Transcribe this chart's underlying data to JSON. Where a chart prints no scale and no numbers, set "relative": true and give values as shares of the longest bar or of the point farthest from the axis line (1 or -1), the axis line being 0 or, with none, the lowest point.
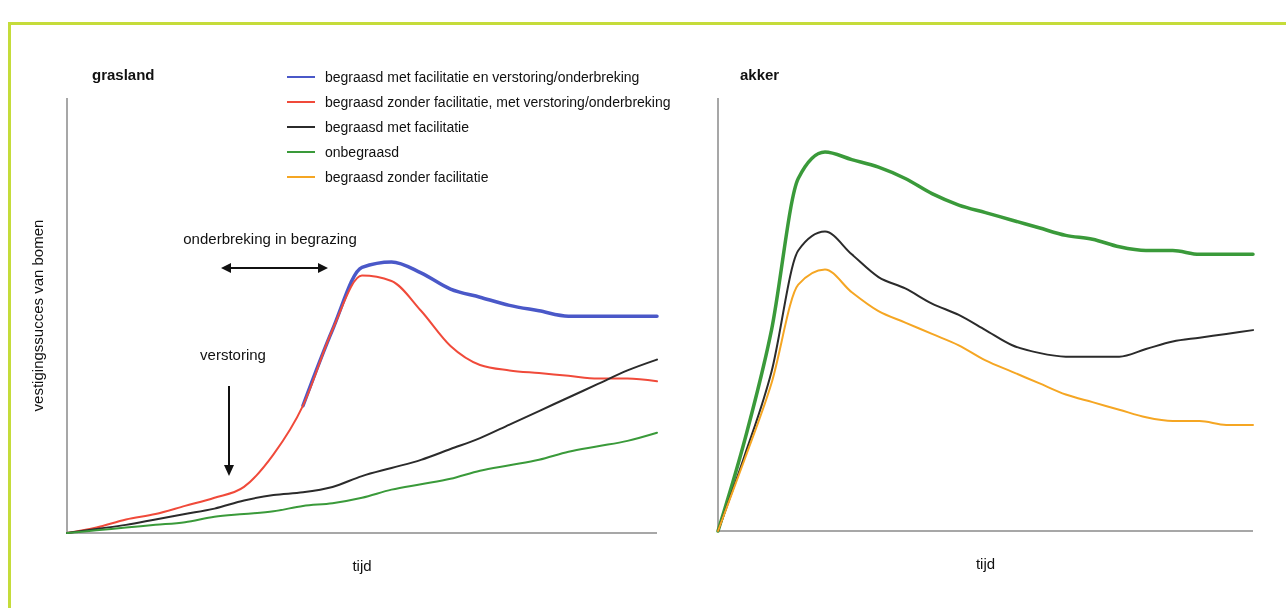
{
  "chart_data": [
    {
      "type": "line",
      "title": "grasland",
      "xlabel": "tijd",
      "ylabel": "vestigingssucces van bomen",
      "relative": true,
      "legend": "top",
      "annotations": [
        "onderbreking in begrazing",
        "verstoring"
      ],
      "categories": [
        null,
        null,
        null,
        null,
        null,
        null,
        null,
        null,
        null,
        null,
        null,
        null,
        null,
        null,
        null,
        null,
        null,
        null,
        null,
        null,
        null
      ],
      "series": [
        {
          "name": "begraasd met facilitatie en verstoring/onderbreking",
          "color": "#4a58c8",
          "values": [
            null,
            null,
            null,
            null,
            null,
            null,
            null,
            null,
            0.47,
            0.75,
            0.98,
            1.0,
            0.96,
            0.9,
            0.87,
            0.84,
            0.82,
            0.8,
            0.8,
            0.8,
            0.8
          ]
        },
        {
          "name": "begraasd zonder facilitatie, met verstoring/onderbreking",
          "color": "#f04a3a",
          "values": [
            0,
            0.02,
            0.05,
            0.07,
            0.1,
            0.13,
            0.17,
            0.29,
            0.47,
            0.75,
            0.95,
            0.93,
            0.82,
            0.69,
            0.62,
            0.6,
            0.59,
            0.58,
            0.57,
            0.57,
            0.56
          ]
        },
        {
          "name": "begraasd met facilitatie",
          "color": "#2b2b2b",
          "values": [
            0,
            0.015,
            0.03,
            0.05,
            0.07,
            0.09,
            0.12,
            0.14,
            0.15,
            0.17,
            0.21,
            0.24,
            0.27,
            0.31,
            0.35,
            0.4,
            0.45,
            0.5,
            0.55,
            0.6,
            0.64
          ]
        },
        {
          "name": "onbegraasd",
          "color": "#3a9a3a",
          "values": [
            0,
            0.01,
            0.02,
            0.03,
            0.04,
            0.06,
            0.07,
            0.08,
            0.1,
            0.11,
            0.13,
            0.16,
            0.18,
            0.2,
            0.23,
            0.25,
            0.27,
            0.3,
            0.32,
            0.34,
            0.37
          ]
        }
      ]
    },
    {
      "type": "line",
      "title": "akker",
      "xlabel": "tijd",
      "relative": true,
      "categories": [
        null,
        null,
        null,
        null,
        null,
        null,
        null,
        null,
        null,
        null,
        null,
        null,
        null,
        null,
        null,
        null,
        null,
        null,
        null,
        null,
        null
      ],
      "series": [
        {
          "name": "onbegraasd",
          "color": "#3a9a3a",
          "values": [
            0,
            0.24,
            0.53,
            0.93,
            1.0,
            0.98,
            0.96,
            0.93,
            0.89,
            0.86,
            0.84,
            0.82,
            0.8,
            0.78,
            0.77,
            0.75,
            0.74,
            0.74,
            0.73,
            0.73,
            0.73
          ]
        },
        {
          "name": "begraasd met facilitatie",
          "color": "#2b2b2b",
          "values": [
            0,
            0.2,
            0.42,
            0.74,
            0.79,
            0.73,
            0.67,
            0.64,
            0.6,
            0.57,
            0.53,
            0.49,
            0.47,
            0.46,
            0.46,
            0.46,
            0.48,
            0.5,
            0.51,
            0.52,
            0.53
          ]
        },
        {
          "name": "begraasd zonder facilitatie",
          "color": "#f5a623",
          "values": [
            0,
            0.19,
            0.39,
            0.65,
            0.69,
            0.63,
            0.58,
            0.55,
            0.52,
            0.49,
            0.45,
            0.42,
            0.39,
            0.36,
            0.34,
            0.32,
            0.3,
            0.29,
            0.29,
            0.28,
            0.28
          ]
        }
      ]
    }
  ]
}
